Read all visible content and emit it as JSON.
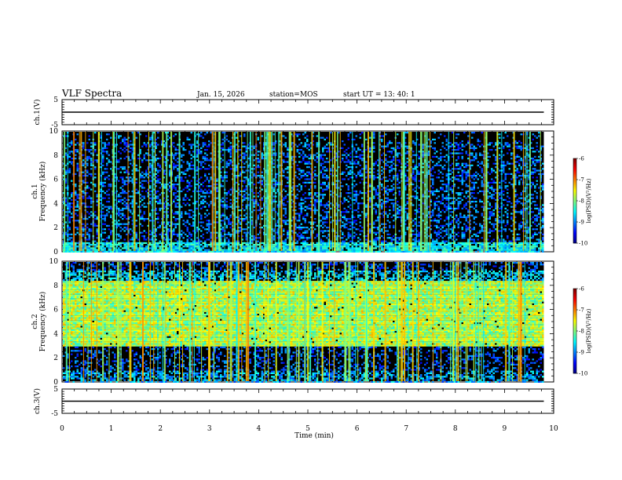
{
  "header": {
    "title": "VLF Spectra",
    "date": "Jan. 15, 2026",
    "station": "station=MOS",
    "start": "start UT =  13: 40: 1"
  },
  "chart_data": [
    {
      "type": "line",
      "panel": "ch1-voltage",
      "ylabel": "ch.1(V)",
      "ylim": [
        -5,
        5
      ],
      "yticks": [
        5,
        -5
      ],
      "x": [
        0,
        9.8
      ],
      "y": [
        0,
        0
      ],
      "xlim": [
        0,
        10
      ]
    },
    {
      "type": "heatmap",
      "panel": "ch1-spectrogram",
      "ylabel": "ch.1\nFrequency (kHz)",
      "ylim": [
        0,
        10
      ],
      "yticks": [
        0,
        2,
        4,
        6,
        8,
        10
      ],
      "xlim": [
        0,
        9.8
      ],
      "color_label": "log(PSD)(V²/Hz)",
      "color_range": [
        -10,
        -6
      ],
      "color_ticks": [
        -6,
        -7,
        -8,
        -9,
        -10
      ],
      "background_band_khz": [
        0,
        10
      ],
      "noise_floor_log": -9.6,
      "low_freq_band_khz": [
        0,
        1
      ]
    },
    {
      "type": "heatmap",
      "panel": "ch2-spectrogram",
      "ylabel": "ch.2\nFrequency (kHz)",
      "ylim": [
        0,
        10
      ],
      "yticks": [
        0,
        2,
        4,
        6,
        8,
        10
      ],
      "xlim": [
        0,
        9.8
      ],
      "color_label": "log(PSD)(V²/Hz)",
      "color_range": [
        -10,
        -6
      ],
      "color_ticks": [
        -6,
        -7,
        -8,
        -9,
        -10
      ],
      "emission_band_khz": [
        3,
        8.5
      ],
      "emission_level_log": -7.8
    },
    {
      "type": "line",
      "panel": "ch3-voltage",
      "ylabel": "ch.3(V)",
      "ylim": [
        -5,
        5
      ],
      "yticks": [
        5,
        -5
      ],
      "x": [
        0,
        9.8
      ],
      "y": [
        0,
        0
      ],
      "xlim": [
        0,
        10
      ]
    }
  ],
  "xaxis": {
    "label": "Time (min)",
    "ticks": [
      0,
      1,
      2,
      3,
      4,
      5,
      6,
      7,
      8,
      9,
      10
    ]
  }
}
